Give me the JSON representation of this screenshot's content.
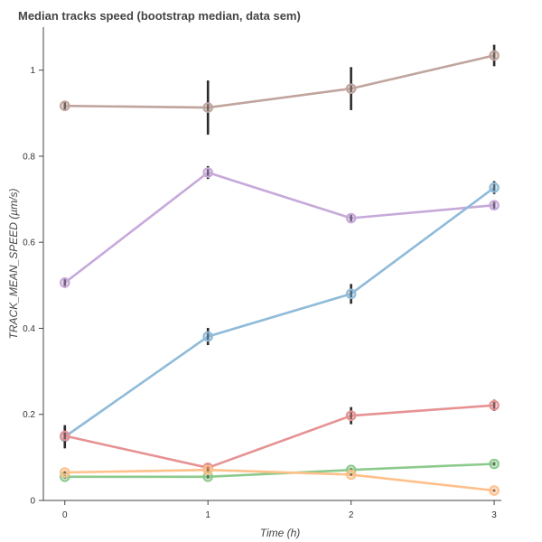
{
  "chart_data": {
    "type": "line",
    "title": "Median tracks speed (bootstrap median, data sem)",
    "xlabel": "Time (h)",
    "ylabel": "TRACK_MEAN_SPEED (µm/s)",
    "xlim": [
      -0.15,
      3.05
    ],
    "ylim": [
      0,
      1.1
    ],
    "x_ticks": [
      "0",
      "1",
      "2",
      "3"
    ],
    "y_ticks": [
      "0",
      "0.2",
      "0.4",
      "0.6",
      "0.8",
      "1"
    ],
    "grid": false,
    "x": [
      0,
      1,
      2,
      3
    ],
    "series": [
      {
        "color": "#c0a49d",
        "values": [
          0.917,
          0.913,
          0.957,
          1.034
        ],
        "err": [
          0.012,
          0.063,
          0.05,
          0.025
        ]
      },
      {
        "color": "#c6a9d9",
        "values": [
          0.506,
          0.762,
          0.656,
          0.686
        ],
        "err": [
          0.012,
          0.015,
          0.008,
          0.008
        ]
      },
      {
        "color": "#8fbbd9",
        "values": [
          0.148,
          0.381,
          0.48,
          0.727
        ],
        "err": [
          0.027,
          0.02,
          0.023,
          0.015
        ]
      },
      {
        "color": "#e69293",
        "values": [
          0.15,
          0.076,
          0.197,
          0.221
        ],
        "err": [
          0.02,
          0.01,
          0.02,
          0.013
        ]
      },
      {
        "color": "#8cca8c",
        "values": [
          0.055,
          0.055,
          0.071,
          0.085
        ],
        "err": [
          0.004,
          0.004,
          0.004,
          0.004
        ]
      },
      {
        "color": "#ffc08a",
        "values": [
          0.065,
          0.071,
          0.06,
          0.023
        ],
        "err": [
          0.003,
          0.003,
          0.003,
          0.003
        ]
      }
    ]
  }
}
